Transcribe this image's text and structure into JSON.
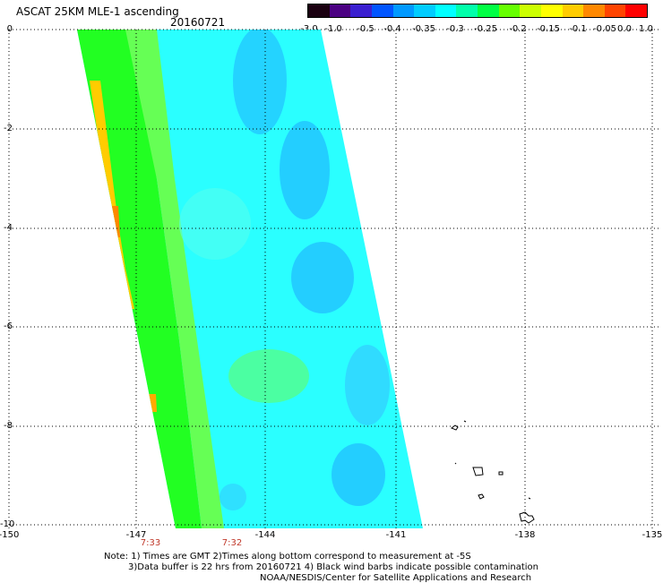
{
  "header": {
    "title": "ASCAT 25KM MLE-1 ascending",
    "date": "20160721"
  },
  "colorbar": {
    "labels": [
      "-3.0",
      "-1.0",
      "-0.5",
      "-0.4",
      "-0.35",
      "-0.3",
      "-0.25",
      "-0.2",
      "-0.15",
      "-0.1",
      "-0.05",
      "0.0",
      "1.0"
    ],
    "colors": [
      "#1a0010",
      "#4b0082",
      "#3a1fd0",
      "#0055ff",
      "#0099ff",
      "#00ccff",
      "#00ffff",
      "#00ffaa",
      "#00ff44",
      "#66ff00",
      "#ccff00",
      "#ffff00",
      "#ffcc00",
      "#ff8800",
      "#ff4400",
      "#ff0000"
    ]
  },
  "map": {
    "lon_labels": [
      "-150",
      "-147",
      "-144",
      "-141",
      "-138",
      "-135"
    ],
    "lat_labels": [
      "0",
      "-2",
      "-4",
      "-6",
      "-8",
      "-10"
    ],
    "time_labels": [
      "7:33",
      "7:32"
    ],
    "swath_colors": {
      "west_edge": "#ffcc00",
      "green": "#22ff22",
      "light_green": "#66ff55",
      "cyan": "#22ffff",
      "light_cyan": "#55ffee",
      "blue": "#1faeff",
      "mid_blue": "#33ccff"
    }
  },
  "notes": {
    "line1": "Note: 1) Times are GMT 2)Times along bottom correspond to measurement at -5S",
    "line2": "3)Data buffer is 22 hrs from 20160721 4) Black wind barbs indicate possible contamination",
    "line3": "NOAA/NESDIS/Center for Satellite Applications and Research"
  }
}
